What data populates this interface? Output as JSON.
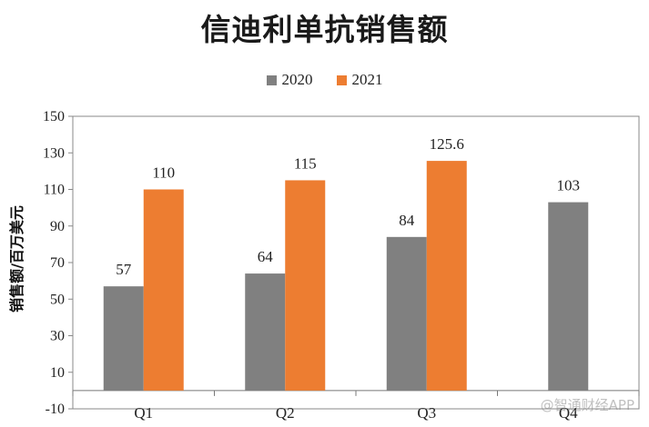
{
  "chart_data": {
    "type": "bar",
    "title": "信迪利单抗销售额",
    "ylabel": "销售额/百万美元",
    "xlabel": "",
    "categories": [
      "Q1",
      "Q2",
      "Q3",
      "Q4"
    ],
    "series": [
      {
        "name": "2020",
        "color": "#808080",
        "values": [
          57,
          64,
          84,
          103
        ]
      },
      {
        "name": "2021",
        "color": "#ED7D31",
        "values": [
          110,
          115,
          125.6,
          null
        ]
      }
    ],
    "ylim": [
      -10,
      150
    ],
    "yticks": [
      -10,
      10,
      30,
      50,
      70,
      90,
      110,
      130,
      150
    ],
    "data_labels": [
      [
        "57",
        "64",
        "84",
        "103"
      ],
      [
        "110",
        "115",
        "125.6",
        ""
      ]
    ],
    "legend": "top-center",
    "grid": false
  },
  "watermark": "@智通财经APP"
}
